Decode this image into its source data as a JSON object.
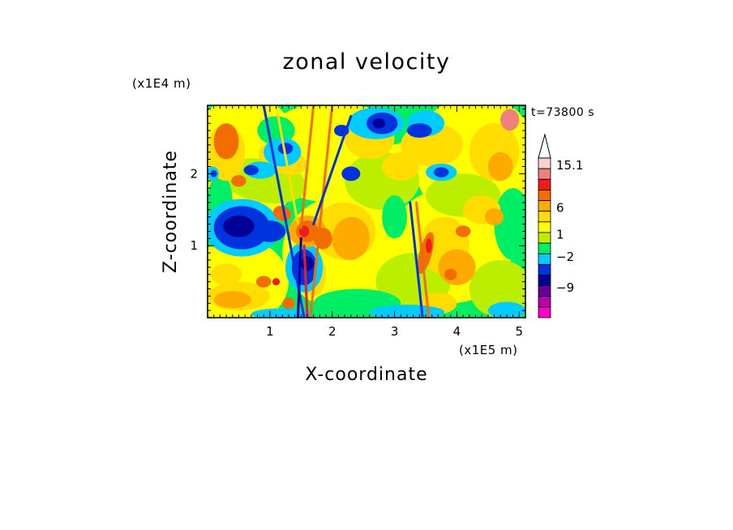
{
  "chart_data": {
    "type": "heatmap",
    "title": "zonal velocity",
    "xlabel": "X-coordinate",
    "ylabel": "Z-coordinate",
    "x_unit": "(x1E5 m)",
    "y_unit": "(x1E4 m)",
    "time_label": "t=73800 s",
    "xlim": [
      0,
      5.1
    ],
    "ylim": [
      0,
      2.95
    ],
    "x_ticks": [
      1,
      2,
      3,
      4,
      5
    ],
    "y_ticks": [
      1,
      2
    ],
    "x_tick_labels": [
      "1",
      "2",
      "3",
      "4",
      "5"
    ],
    "y_tick_labels": [
      "1",
      "2"
    ],
    "colorbar": {
      "labels": [
        "15.1",
        "6",
        "1",
        "−2",
        "−9"
      ],
      "label_values": [
        15.1,
        6,
        1,
        -2,
        -9
      ],
      "levels_top_to_bottom": [
        {
          "color": "#fbd0d0"
        },
        {
          "color": "#f08080"
        },
        {
          "color": "#ee1c1c"
        },
        {
          "color": "#f26d00"
        },
        {
          "color": "#ffaa00"
        },
        {
          "color": "#ffdd00"
        },
        {
          "color": "#ffff00"
        },
        {
          "color": "#bbee00"
        },
        {
          "color": "#00ee66"
        },
        {
          "color": "#00ccff"
        },
        {
          "color": "#0033dd"
        },
        {
          "color": "#000099"
        },
        {
          "color": "#660099"
        },
        {
          "color": "#bb00aa"
        },
        {
          "color": "#ff00cc"
        }
      ],
      "extend_top": true
    },
    "grid": false
  }
}
